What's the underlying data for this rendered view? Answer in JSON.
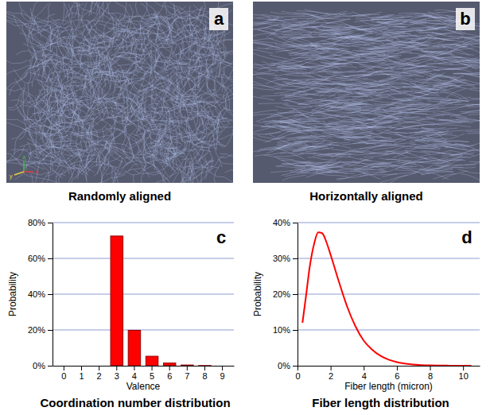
{
  "figure": {
    "panels": [
      {
        "letter": "a",
        "caption": "Randomly aligned",
        "axis_labels": [
          "z",
          "y",
          "x"
        ]
      },
      {
        "letter": "b",
        "caption": "Horizontally aligned"
      }
    ]
  },
  "chart_data": [
    {
      "type": "bar",
      "letter": "c",
      "caption": "Coordination number distribution",
      "x_label": "Valence",
      "y_label": "Probability",
      "categories": [
        "0",
        "1",
        "2",
        "3",
        "4",
        "5",
        "6",
        "7",
        "8",
        "9"
      ],
      "values": [
        0,
        0,
        0,
        72.5,
        19.8,
        5.3,
        1.5,
        0.4,
        0.1,
        0
      ],
      "color": "#ff0000",
      "ylim": [
        0,
        80
      ],
      "yticks": [
        {
          "value": 0,
          "label": "0%"
        },
        {
          "value": 20,
          "label": "20%"
        },
        {
          "value": 40,
          "label": "40%"
        },
        {
          "value": 60,
          "label": "60%"
        },
        {
          "value": 80,
          "label": "80%"
        }
      ],
      "grid": true
    },
    {
      "type": "line",
      "letter": "d",
      "caption": "Fiber length distribution",
      "x_label": "Fiber length (micron)",
      "y_label": "Probability",
      "x": [
        0.3,
        0.5,
        0.75,
        1.0,
        1.25,
        1.5,
        1.75,
        2.0,
        2.5,
        3.0,
        3.5,
        4.0,
        4.5,
        5.0,
        5.5,
        6.0,
        7.0,
        8.0,
        9.0,
        10.0,
        10.5
      ],
      "values": [
        12,
        19,
        28,
        34,
        37.3,
        37,
        34.5,
        31,
        23.5,
        16.5,
        11,
        7,
        4.5,
        2.8,
        1.7,
        1.0,
        0.35,
        0.1,
        0.03,
        0.01,
        0
      ],
      "color": "#ff0000",
      "xlim": [
        0,
        11
      ],
      "xticks": [
        0,
        2,
        4,
        6,
        8,
        10
      ],
      "ylim": [
        0,
        40
      ],
      "yticks": [
        {
          "value": 0,
          "label": "0%"
        },
        {
          "value": 10,
          "label": "10%"
        },
        {
          "value": 20,
          "label": "20%"
        },
        {
          "value": 30,
          "label": "30%"
        },
        {
          "value": 40,
          "label": "40%"
        }
      ],
      "grid": true
    }
  ]
}
